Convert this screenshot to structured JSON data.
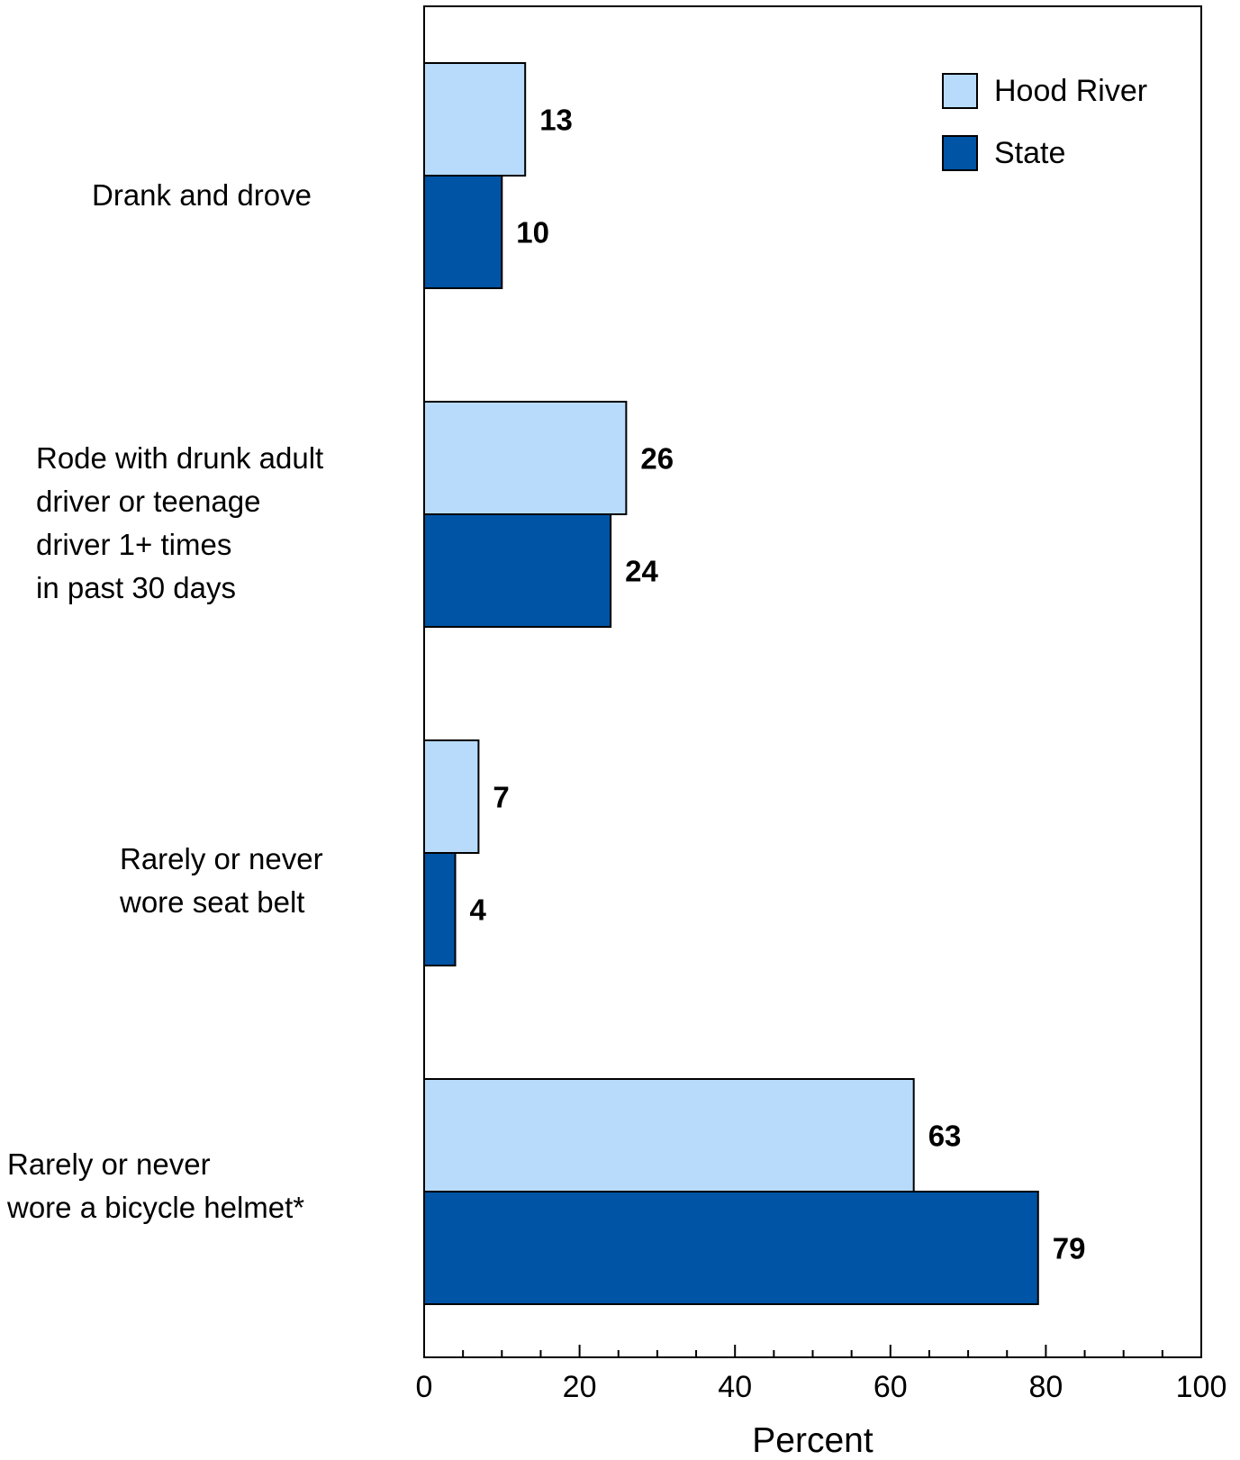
{
  "chart_data": {
    "type": "bar",
    "orientation": "horizontal",
    "categories": [
      "Drank and drove",
      "Rode with drunk adult\ndriver or teenage\ndriver 1+ times\nin past 30 days",
      "Rarely or never\nwore seat belt",
      "Rarely or never\nwore a bicycle helmet*"
    ],
    "series": [
      {
        "name": "Hood River",
        "color": "#b8dbfc",
        "values": [
          13,
          26,
          7,
          63
        ]
      },
      {
        "name": "State",
        "color": "#0054a6",
        "values": [
          10,
          24,
          4,
          79
        ]
      }
    ],
    "xlabel": "Percent",
    "ylabel": "",
    "xlim": [
      0,
      100
    ],
    "xticks": [
      "0",
      "20",
      "40",
      "60",
      "80",
      "100"
    ],
    "grid": false,
    "legend_position": "top-right"
  }
}
